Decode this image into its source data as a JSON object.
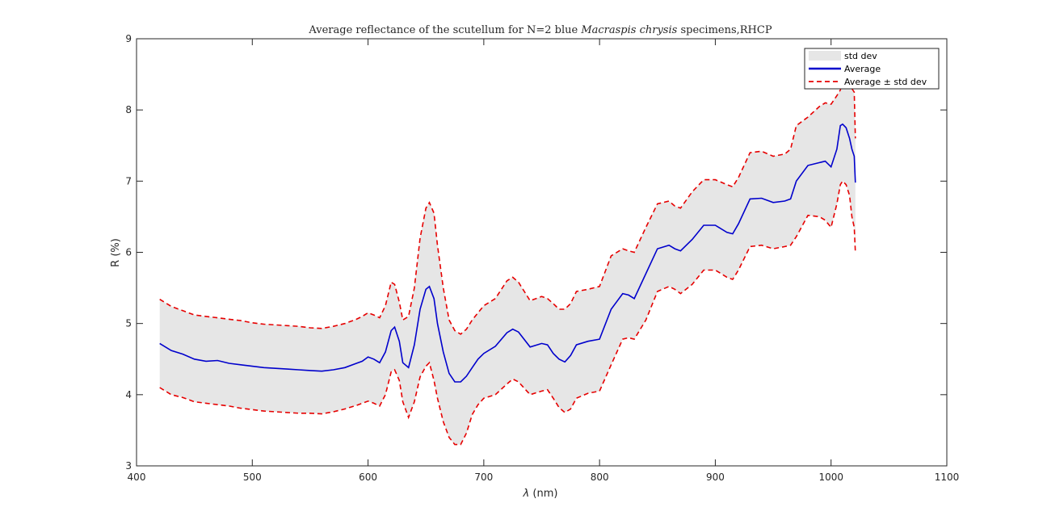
{
  "chart_data": {
    "type": "line",
    "title": {
      "prefix": "Average reflectance of the scutellum for N=2 blue ",
      "species": "Macraspis chrysis",
      "suffix": " specimens,RHCP"
    },
    "xlabel": {
      "symbol": "λ",
      "unit": " (nm)"
    },
    "ylabel": "R (%)",
    "xlim": [
      400,
      1100
    ],
    "ylim": [
      3,
      9
    ],
    "xticks": [
      400,
      500,
      600,
      700,
      800,
      900,
      1000,
      1100
    ],
    "yticks": [
      3,
      4,
      5,
      6,
      7,
      8,
      9
    ],
    "grid": false,
    "legend_position": "top-right",
    "legend": {
      "band": "std dev",
      "average": "Average",
      "bounds": "Average ± std dev"
    },
    "colors": {
      "band": "#e6e6e6",
      "average": "#0000cc",
      "bounds": "#e60000",
      "axis": "#262626"
    },
    "x": [
      420,
      430,
      440,
      450,
      460,
      470,
      480,
      490,
      500,
      510,
      520,
      530,
      540,
      550,
      560,
      570,
      580,
      590,
      595,
      600,
      605,
      610,
      615,
      620,
      623,
      627,
      630,
      635,
      640,
      645,
      650,
      653,
      657,
      660,
      665,
      670,
      675,
      680,
      685,
      690,
      695,
      700,
      710,
      720,
      725,
      730,
      740,
      750,
      755,
      760,
      765,
      770,
      775,
      780,
      790,
      800,
      810,
      820,
      825,
      830,
      840,
      850,
      860,
      865,
      870,
      880,
      890,
      900,
      910,
      915,
      920,
      930,
      940,
      950,
      960,
      965,
      970,
      980,
      990,
      995,
      1000,
      1005,
      1008,
      1010,
      1013,
      1016,
      1018,
      1020,
      1021
    ],
    "series": [
      {
        "role": "average",
        "values": [
          4.72,
          4.62,
          4.57,
          4.5,
          4.47,
          4.48,
          4.44,
          4.42,
          4.4,
          4.38,
          4.37,
          4.36,
          4.35,
          4.34,
          4.33,
          4.35,
          4.38,
          4.44,
          4.47,
          4.53,
          4.5,
          4.45,
          4.6,
          4.9,
          4.95,
          4.75,
          4.45,
          4.38,
          4.7,
          5.2,
          5.48,
          5.52,
          5.35,
          5.0,
          4.6,
          4.3,
          4.18,
          4.18,
          4.26,
          4.38,
          4.5,
          4.58,
          4.68,
          4.87,
          4.92,
          4.88,
          4.67,
          4.72,
          4.7,
          4.58,
          4.5,
          4.46,
          4.55,
          4.7,
          4.75,
          4.78,
          5.2,
          5.42,
          5.4,
          5.35,
          5.7,
          6.05,
          6.1,
          6.05,
          6.02,
          6.18,
          6.38,
          6.38,
          6.28,
          6.26,
          6.4,
          6.75,
          6.76,
          6.7,
          6.72,
          6.75,
          7.0,
          7.22,
          7.26,
          7.28,
          7.2,
          7.45,
          7.78,
          7.8,
          7.75,
          7.6,
          7.45,
          7.35,
          6.98
        ]
      },
      {
        "role": "upper",
        "values": [
          5.34,
          5.24,
          5.18,
          5.12,
          5.1,
          5.08,
          5.06,
          5.04,
          5.01,
          4.99,
          4.98,
          4.97,
          4.96,
          4.94,
          4.93,
          4.96,
          5.0,
          5.06,
          5.1,
          5.15,
          5.12,
          5.08,
          5.25,
          5.58,
          5.55,
          5.3,
          5.05,
          5.1,
          5.5,
          6.2,
          6.62,
          6.7,
          6.55,
          6.1,
          5.5,
          5.05,
          4.9,
          4.85,
          4.92,
          5.05,
          5.15,
          5.25,
          5.35,
          5.6,
          5.65,
          5.58,
          5.32,
          5.38,
          5.35,
          5.28,
          5.2,
          5.2,
          5.28,
          5.45,
          5.48,
          5.52,
          5.95,
          6.05,
          6.02,
          6.0,
          6.35,
          6.68,
          6.72,
          6.65,
          6.62,
          6.85,
          7.02,
          7.02,
          6.95,
          6.92,
          7.05,
          7.4,
          7.42,
          7.35,
          7.38,
          7.45,
          7.78,
          7.9,
          8.05,
          8.1,
          8.08,
          8.2,
          8.28,
          8.45,
          8.48,
          8.4,
          8.3,
          8.25,
          7.6
        ]
      },
      {
        "role": "lower",
        "values": [
          4.1,
          4.0,
          3.96,
          3.9,
          3.88,
          3.86,
          3.84,
          3.81,
          3.79,
          3.77,
          3.76,
          3.75,
          3.74,
          3.74,
          3.73,
          3.76,
          3.8,
          3.85,
          3.88,
          3.91,
          3.88,
          3.84,
          4.0,
          4.32,
          4.35,
          4.2,
          3.9,
          3.68,
          3.9,
          4.25,
          4.4,
          4.45,
          4.2,
          3.95,
          3.62,
          3.4,
          3.3,
          3.3,
          3.46,
          3.72,
          3.86,
          3.95,
          4.0,
          4.15,
          4.22,
          4.18,
          4.0,
          4.05,
          4.07,
          3.95,
          3.82,
          3.75,
          3.8,
          3.95,
          4.02,
          4.05,
          4.42,
          4.78,
          4.8,
          4.78,
          5.05,
          5.45,
          5.52,
          5.48,
          5.42,
          5.55,
          5.75,
          5.75,
          5.65,
          5.62,
          5.75,
          6.08,
          6.1,
          6.05,
          6.08,
          6.1,
          6.22,
          6.52,
          6.5,
          6.45,
          6.35,
          6.68,
          6.95,
          7.0,
          6.95,
          6.8,
          6.5,
          6.35,
          6.0
        ]
      }
    ]
  }
}
